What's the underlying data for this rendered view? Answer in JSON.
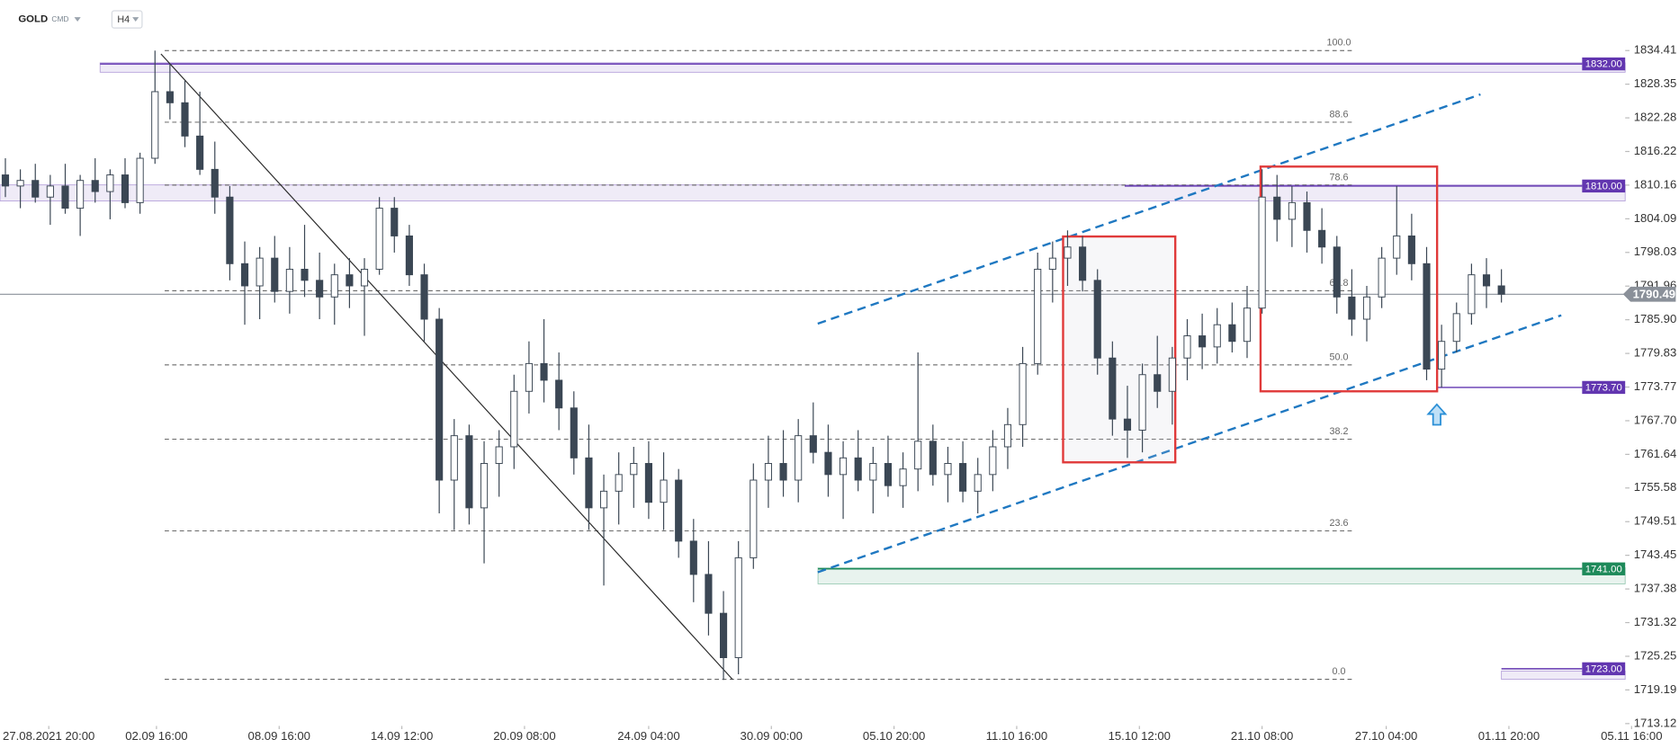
{
  "chart_data": {
    "type": "candlestick",
    "symbol": "GOLD",
    "market": "CMD",
    "interval": "H4",
    "xlim": [
      -0.36,
      111.87
    ],
    "ylim": [
      1712.7,
      1837.7
    ],
    "xticks": [
      {
        "value": 2.9,
        "label": "27.08.2021 20:00"
      },
      {
        "value": 10.1,
        "label": "02.09 16:00"
      },
      {
        "value": 18.3,
        "label": "08.09 16:00"
      },
      {
        "value": 26.5,
        "label": "14.09 12:00"
      },
      {
        "value": 34.7,
        "label": "20.09 08:00"
      },
      {
        "value": 43,
        "label": "24.09 04:00"
      },
      {
        "value": 51.2,
        "label": "30.09 00:00"
      },
      {
        "value": 59.4,
        "label": "05.10 20:00"
      },
      {
        "value": 67.6,
        "label": "11.10 16:00"
      },
      {
        "value": 75.8,
        "label": "15.10 12:00"
      },
      {
        "value": 84,
        "label": "21.10 08:00"
      },
      {
        "value": 92.3,
        "label": "27.10 04:00"
      },
      {
        "value": 100.5,
        "label": "01.11 20:00"
      },
      {
        "value": 108.7,
        "label": "05.11 16:00"
      }
    ],
    "yticks": [
      1834.41,
      1828.35,
      1822.28,
      1816.22,
      1810.16,
      1804.09,
      1798.03,
      1791.96,
      {
        "value": 1785.9,
        "label": "1785.90"
      },
      1779.83,
      1773.77,
      {
        "value": 1767.7,
        "label": "1767.70"
      },
      1761.64,
      1755.58,
      1749.51,
      1743.45,
      1737.38,
      1731.32,
      1725.25,
      1719.19,
      1713.12
    ],
    "up_color": "#ffffff",
    "down_color": "#3b4754",
    "wick_color": "#3b4754",
    "candles": [
      [
        1812,
        1815,
        1808,
        1810
      ],
      [
        1810,
        1813,
        1806,
        1811
      ],
      [
        1811,
        1814,
        1807,
        1808
      ],
      [
        1808,
        1812,
        1803,
        1810
      ],
      [
        1810,
        1814,
        1805,
        1806
      ],
      [
        1806,
        1812,
        1801,
        1811
      ],
      [
        1811,
        1815,
        1807,
        1809
      ],
      [
        1809,
        1813,
        1804,
        1812
      ],
      [
        1812,
        1815,
        1806,
        1807
      ],
      [
        1807,
        1816,
        1805,
        1815
      ],
      [
        1815,
        1834.4,
        1814,
        1827
      ],
      [
        1827,
        1832,
        1822,
        1825
      ],
      [
        1825,
        1829,
        1817,
        1819
      ],
      [
        1819,
        1827,
        1812,
        1813
      ],
      [
        1813,
        1818,
        1805,
        1808
      ],
      [
        1808,
        1810,
        1793,
        1796
      ],
      [
        1796,
        1800,
        1785,
        1792
      ],
      [
        1792,
        1799,
        1786,
        1797
      ],
      [
        1797,
        1801,
        1789,
        1791
      ],
      [
        1791,
        1799,
        1787,
        1795
      ],
      [
        1795,
        1803,
        1790,
        1793
      ],
      [
        1793,
        1798,
        1786,
        1790
      ],
      [
        1790,
        1796,
        1785,
        1794
      ],
      [
        1794,
        1797,
        1788,
        1792
      ],
      [
        1792,
        1797,
        1783,
        1795
      ],
      [
        1795,
        1808,
        1794,
        1806
      ],
      [
        1806,
        1808,
        1798,
        1801
      ],
      [
        1801,
        1803,
        1792,
        1794
      ],
      [
        1794,
        1796,
        1782,
        1786
      ],
      [
        1786,
        1788,
        1751,
        1757
      ],
      [
        1757,
        1768,
        1748,
        1765
      ],
      [
        1765,
        1767,
        1749,
        1752
      ],
      [
        1752,
        1764,
        1742,
        1760
      ],
      [
        1760,
        1766,
        1754,
        1763
      ],
      [
        1763,
        1776,
        1759,
        1773
      ],
      [
        1773,
        1782,
        1769,
        1778
      ],
      [
        1778,
        1786,
        1771,
        1775
      ],
      [
        1775,
        1780,
        1766,
        1770
      ],
      [
        1770,
        1773,
        1758,
        1761
      ],
      [
        1761,
        1767,
        1748,
        1752
      ],
      [
        1752,
        1758,
        1738,
        1755
      ],
      [
        1755,
        1762,
        1749,
        1758
      ],
      [
        1758,
        1763,
        1752,
        1760
      ],
      [
        1760,
        1764,
        1750,
        1753
      ],
      [
        1753,
        1762,
        1748,
        1757
      ],
      [
        1757,
        1759,
        1743,
        1746
      ],
      [
        1746,
        1750,
        1735,
        1740
      ],
      [
        1740,
        1746,
        1729,
        1733
      ],
      [
        1733,
        1737,
        1721,
        1725
      ],
      [
        1725,
        1746,
        1722,
        1743
      ],
      [
        1743,
        1760,
        1741,
        1757
      ],
      [
        1757,
        1765,
        1752,
        1760
      ],
      [
        1760,
        1766,
        1754,
        1757
      ],
      [
        1757,
        1768,
        1753,
        1765
      ],
      [
        1765,
        1771,
        1760,
        1762
      ],
      [
        1762,
        1767,
        1754,
        1758
      ],
      [
        1758,
        1764,
        1750,
        1761
      ],
      [
        1761,
        1766,
        1755,
        1757
      ],
      [
        1757,
        1763,
        1751,
        1760
      ],
      [
        1760,
        1765,
        1754,
        1756
      ],
      [
        1756,
        1762,
        1752,
        1759
      ],
      [
        1759,
        1780,
        1755,
        1764
      ],
      [
        1764,
        1767,
        1756,
        1758
      ],
      [
        1758,
        1763,
        1753,
        1760
      ],
      [
        1760,
        1764,
        1753,
        1755
      ],
      [
        1755,
        1761,
        1751,
        1758
      ],
      [
        1758,
        1766,
        1755,
        1763
      ],
      [
        1763,
        1770,
        1759,
        1767
      ],
      [
        1767,
        1781,
        1763,
        1778
      ],
      [
        1778,
        1798,
        1776,
        1795
      ],
      [
        1795,
        1800,
        1789,
        1797
      ],
      [
        1797,
        1802,
        1792,
        1799
      ],
      [
        1799,
        1801,
        1791,
        1793
      ],
      [
        1793,
        1795,
        1776,
        1779
      ],
      [
        1779,
        1782,
        1765,
        1768
      ],
      [
        1768,
        1774,
        1761,
        1766
      ],
      [
        1766,
        1778,
        1762,
        1776
      ],
      [
        1776,
        1783,
        1770,
        1773
      ],
      [
        1773,
        1781,
        1767,
        1779
      ],
      [
        1779,
        1786,
        1775,
        1783
      ],
      [
        1783,
        1787,
        1777,
        1781
      ],
      [
        1781,
        1788,
        1778,
        1785
      ],
      [
        1785,
        1789,
        1780,
        1782
      ],
      [
        1782,
        1792,
        1779,
        1788
      ],
      [
        1788,
        1813,
        1787,
        1808
      ],
      [
        1808,
        1812,
        1800,
        1804
      ],
      [
        1804,
        1810,
        1799,
        1807
      ],
      [
        1807,
        1809,
        1798,
        1802
      ],
      [
        1802,
        1806,
        1796,
        1799
      ],
      [
        1799,
        1801,
        1787,
        1790
      ],
      [
        1790,
        1795,
        1783,
        1786
      ],
      [
        1786,
        1792,
        1782,
        1790
      ],
      [
        1790,
        1799,
        1788,
        1797
      ],
      [
        1797,
        1810,
        1794,
        1801
      ],
      [
        1801,
        1805,
        1793,
        1796
      ],
      [
        1796,
        1799,
        1775,
        1777
      ],
      [
        1777,
        1785,
        1773.7,
        1782
      ],
      [
        1782,
        1789,
        1780,
        1787
      ],
      [
        1787,
        1796,
        1785,
        1794
      ],
      [
        1794,
        1797,
        1788,
        1792
      ],
      [
        1792,
        1795,
        1789,
        1790.49
      ]
    ],
    "last_price": 1790.49,
    "levels": [
      {
        "value": 1832,
        "label": "1832.00",
        "color": "#6236b0",
        "zone": [
          1830.5,
          1832.2
        ]
      },
      {
        "value": 1810,
        "label": "1810.00",
        "color": "#6236b0",
        "zone": [
          1807.3,
          1810.2
        ]
      },
      {
        "value": 1773.7,
        "label": "1773.70",
        "color": "#6236b0"
      },
      {
        "value": 1741,
        "label": "1741.00",
        "color": "#1e8a5a",
        "zone": [
          1738.3,
          1741.2
        ]
      },
      {
        "value": 1723,
        "label": "1723.00",
        "color": "#6236b0",
        "zone": [
          1721.1,
          1722.6
        ]
      }
    ],
    "fib": {
      "high": 1834.41,
      "low": 1721.1,
      "levels": [
        {
          "value": 100,
          "label": "100.0"
        },
        88.6,
        78.6,
        61.8,
        {
          "value": 50,
          "label": "50.0"
        },
        38.2,
        23.6,
        {
          "value": 0,
          "label": "0.0"
        }
      ]
    },
    "trendlines": [
      {
        "x": [
          10.4,
          48.6
        ],
        "y": [
          1833.8,
          1721.1
        ],
        "color": "#2b2b2b",
        "dashed": false
      },
      {
        "x": [
          54.3,
          98.6
        ],
        "y": [
          1785.2,
          1826.5
        ],
        "color": "#1f78c1",
        "dashed": true
      },
      {
        "x": [
          54.3,
          104
        ],
        "y": [
          1740.4,
          1786.7
        ],
        "color": "#1f78c1",
        "dashed": true
      }
    ],
    "boxes": [
      {
        "x": [
          70.7,
          78.2
        ],
        "y": [
          1760.2,
          1800.9
        ],
        "color": "#e03a3a"
      },
      {
        "x": [
          83.9,
          95.7
        ],
        "y": [
          1773,
          1813.5
        ],
        "color": "#e03a3a"
      }
    ]
  }
}
